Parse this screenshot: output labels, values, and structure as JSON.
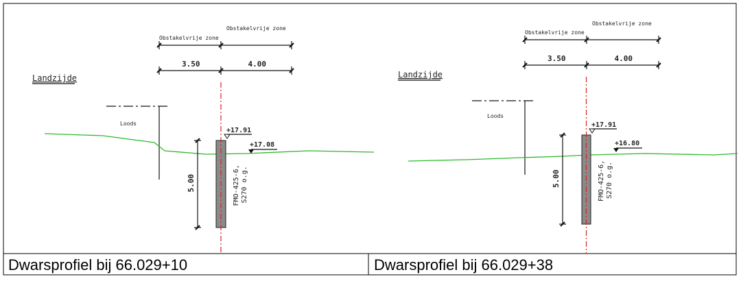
{
  "panels": [
    {
      "zone_left": "Obstakelvrije zone",
      "zone_right": "Obstakelvrije zone",
      "dim_left": "3.50",
      "dim_right": "4.00",
      "side": "Landzijde",
      "building": "Loods",
      "level_top": "+17.91",
      "level_ground": "+17.08",
      "depth": "5.00",
      "pile_type": "FMO-425-6,",
      "pile_grade": "S270 o.g.",
      "caption": "Dwarsprofiel bij 66.029+10"
    },
    {
      "zone_left": "Obstakelvrije zone",
      "zone_right": "Obstakelvrije zone",
      "dim_left": "3.50",
      "dim_right": "4.00",
      "side": "Landzijde",
      "building": "Loods",
      "level_top": "+17.91",
      "level_ground": "+16.80",
      "depth": "5.00",
      "pile_type": "FMO-425-6,",
      "pile_grade": "S270 o.g.",
      "caption": "Dwarsprofiel bij 66.029+38"
    }
  ]
}
